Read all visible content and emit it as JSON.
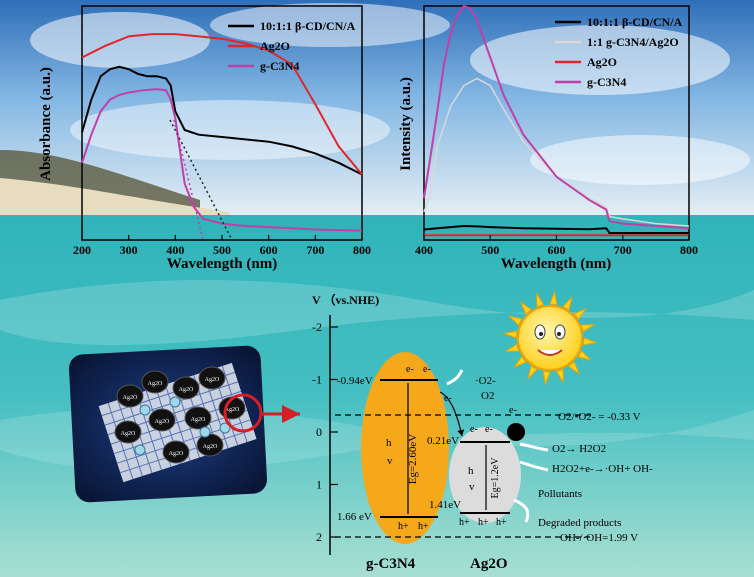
{
  "chart_data": [
    {
      "type": "line",
      "xlabel": "Wavelength (nm)",
      "ylabel": "Absorbance (a.u.)",
      "xlim": [
        200,
        800
      ],
      "x_ticks": [
        "200",
        "300",
        "400",
        "500",
        "600",
        "700",
        "800"
      ],
      "legend": "top-right",
      "series": [
        {
          "name": "10:1:1 β-CD/CN/A",
          "color": "#000000",
          "x": [
            200,
            220,
            240,
            260,
            280,
            300,
            320,
            340,
            360,
            380,
            390,
            400,
            420,
            450,
            500,
            550,
            600,
            650,
            700,
            750,
            800
          ],
          "y": [
            0.46,
            0.6,
            0.7,
            0.73,
            0.74,
            0.73,
            0.71,
            0.7,
            0.7,
            0.69,
            0.66,
            0.55,
            0.47,
            0.45,
            0.44,
            0.43,
            0.42,
            0.4,
            0.37,
            0.33,
            0.28
          ]
        },
        {
          "name": "Ag2O",
          "color": "#e0262d",
          "x": [
            200,
            250,
            300,
            350,
            400,
            450,
            500,
            550,
            600,
            650,
            700,
            750,
            800
          ],
          "y": [
            0.78,
            0.83,
            0.87,
            0.88,
            0.88,
            0.87,
            0.86,
            0.84,
            0.81,
            0.75,
            0.58,
            0.4,
            0.28
          ]
        },
        {
          "name": "g-C3N4",
          "color": "#c040a8",
          "x": [
            200,
            220,
            240,
            260,
            280,
            300,
            330,
            360,
            380,
            390,
            400,
            410,
            420,
            440,
            460,
            500,
            550,
            600,
            650,
            700,
            800
          ],
          "y": [
            0.33,
            0.45,
            0.55,
            0.6,
            0.62,
            0.63,
            0.64,
            0.645,
            0.64,
            0.6,
            0.52,
            0.38,
            0.24,
            0.14,
            0.09,
            0.07,
            0.06,
            0.055,
            0.05,
            0.045,
            0.04
          ]
        }
      ]
    },
    {
      "type": "line",
      "xlabel": "Wavelength (nm)",
      "ylabel": "Intensity (a.u.)",
      "xlim": [
        400,
        800
      ],
      "x_ticks": [
        "400",
        "500",
        "600",
        "700",
        "800"
      ],
      "legend": "top-right",
      "series": [
        {
          "name": "10:1:1 β-CD/CN/A",
          "color": "#000000",
          "x": [
            400,
            420,
            440,
            460,
            480,
            500,
            550,
            600,
            650,
            675,
            680,
            700,
            750,
            800
          ],
          "y": [
            0.045,
            0.05,
            0.055,
            0.06,
            0.058,
            0.055,
            0.05,
            0.048,
            0.046,
            0.05,
            0.03,
            0.03,
            0.03,
            0.03
          ]
        },
        {
          "name": "1:1 g-C3N4/Ag2O",
          "color": "#d8d8d8",
          "x": [
            400,
            410,
            420,
            440,
            460,
            480,
            500,
            520,
            550,
            600,
            650,
            675,
            680,
            700,
            750,
            800
          ],
          "y": [
            0.12,
            0.2,
            0.4,
            0.57,
            0.66,
            0.69,
            0.66,
            0.56,
            0.42,
            0.27,
            0.18,
            0.14,
            0.1,
            0.09,
            0.07,
            0.06
          ]
        },
        {
          "name": "Ag2O",
          "color": "#e0262d",
          "x": [
            400,
            450,
            500,
            550,
            600,
            650,
            700,
            750,
            800
          ],
          "y": [
            0.02,
            0.02,
            0.02,
            0.02,
            0.02,
            0.02,
            0.02,
            0.02,
            0.02
          ]
        },
        {
          "name": "g-C3N4",
          "color": "#c040a8",
          "x": [
            400,
            410,
            420,
            430,
            440,
            450,
            460,
            470,
            480,
            490,
            500,
            520,
            550,
            600,
            650,
            675,
            680,
            700,
            750,
            800
          ],
          "y": [
            0.18,
            0.36,
            0.55,
            0.75,
            0.88,
            0.96,
            1.0,
            0.99,
            0.94,
            0.86,
            0.78,
            0.62,
            0.45,
            0.27,
            0.17,
            0.13,
            0.08,
            0.07,
            0.06,
            0.05
          ]
        }
      ]
    }
  ],
  "diagram": {
    "axis_title": "V （vs.NHE)",
    "y_ticks": [
      "-2",
      "-1",
      "0",
      "1",
      "2"
    ],
    "gcn": {
      "name": "g-C3N4",
      "cb": "-0.94eV",
      "vb": "1.66 eV",
      "gap": "Eg=2.60eV",
      "hv_h": "h",
      "hv_v": "v",
      "electron": "e-",
      "hole": "h+"
    },
    "ag2o": {
      "name": "Ag2O",
      "cb": "0.21eV",
      "vb": "1.41eV",
      "gap": "Eg=1.2eV",
      "hv_h": "h",
      "hv_v": "v"
    },
    "labels": {
      "superoxide": "·O2-",
      "oxygen": "O2",
      "redox_o2": "O2/•O2- = -0.33 V",
      "h2o2": "O2→ H2O2",
      "oh_gen": "H2O2+e-→·OH+ OH-",
      "pollutants": "Pollutants",
      "degraded": "Degraded products",
      "redox_oh": "OH-/·OH=1.99 V"
    },
    "composite_particle_label": "Ag2O",
    "colors": {
      "gcn_fill": "#f4a81a",
      "ag2o_fill": "#dcdcdc",
      "sun": "#ffd21c",
      "circle": "#d41f26"
    }
  }
}
